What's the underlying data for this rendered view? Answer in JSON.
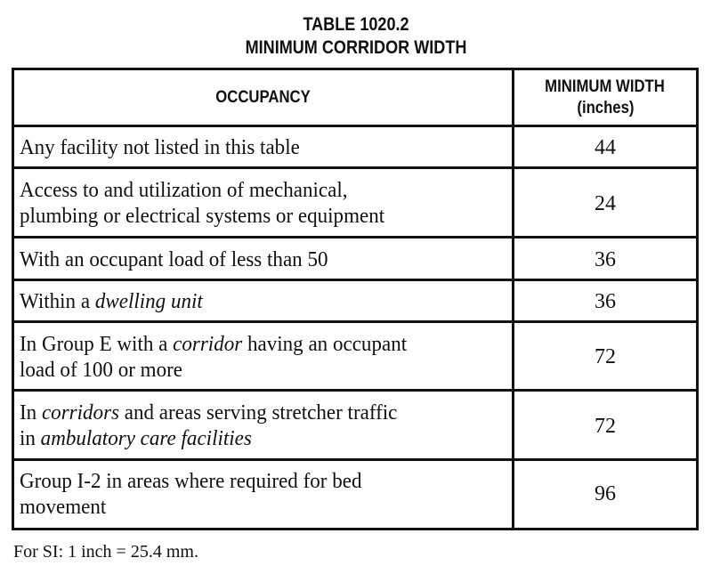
{
  "title": {
    "line1": "TABLE 1020.2",
    "line2": "MINIMUM CORRIDOR WIDTH"
  },
  "table": {
    "headers": {
      "occupancy": "OCCUPANCY",
      "width_line1": "MINIMUM WIDTH",
      "width_line2": "(inches)"
    },
    "rows": [
      {
        "occupancy": {
          "l1": [
            {
              "t": "Any facility not listed in this table",
              "i": false
            }
          ],
          "l2": []
        },
        "width": "44"
      },
      {
        "occupancy": {
          "l1": [
            {
              "t": "Access to and utilization of mechanical,",
              "i": false
            }
          ],
          "l2": [
            {
              "t": "plumbing or electrical systems or equipment",
              "i": false
            }
          ]
        },
        "width": "24"
      },
      {
        "occupancy": {
          "l1": [
            {
              "t": "With an occupant load of less than 50",
              "i": false
            }
          ],
          "l2": []
        },
        "width": "36"
      },
      {
        "occupancy": {
          "l1": [
            {
              "t": "Within a ",
              "i": false
            },
            {
              "t": "dwelling unit",
              "i": true
            }
          ],
          "l2": []
        },
        "width": "36"
      },
      {
        "occupancy": {
          "l1": [
            {
              "t": "In Group E with a ",
              "i": false
            },
            {
              "t": "corridor",
              "i": true
            },
            {
              "t": " having an occupant",
              "i": false
            }
          ],
          "l2": [
            {
              "t": "load of 100 or more",
              "i": false
            }
          ]
        },
        "width": "72"
      },
      {
        "occupancy": {
          "l1": [
            {
              "t": "In ",
              "i": false
            },
            {
              "t": "corridors",
              "i": true
            },
            {
              "t": " and areas serving stretcher traffic",
              "i": false
            }
          ],
          "l2": [
            {
              "t": "in ",
              "i": false
            },
            {
              "t": "ambulatory care facilities",
              "i": true
            }
          ]
        },
        "width": "72"
      },
      {
        "occupancy": {
          "l1": [
            {
              "t": "Group I-2 in areas where required for bed",
              "i": false
            }
          ],
          "l2": [
            {
              "t": "movement",
              "i": false
            }
          ]
        },
        "width": "96"
      }
    ]
  },
  "footnote": "For SI: 1 inch = 25.4 mm."
}
